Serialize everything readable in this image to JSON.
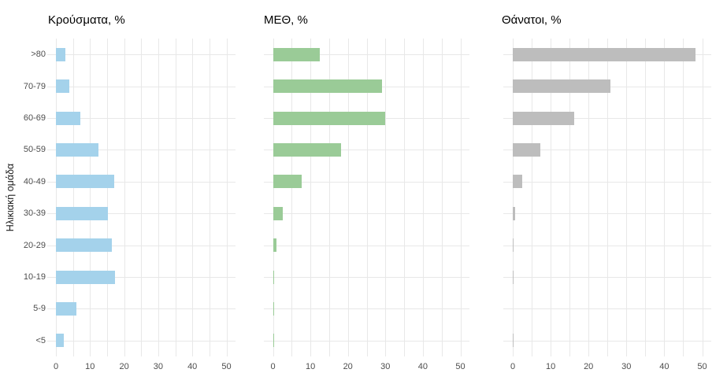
{
  "figure": {
    "y_axis_title": "Ηλικιακή ομάδα",
    "categories": [
      ">80",
      "70-79",
      "60-69",
      "50-59",
      "40-49",
      "30-39",
      "20-29",
      "10-19",
      "5-9",
      "<5"
    ],
    "x_tick_labels": [
      "0",
      "10",
      "20",
      "30",
      "40",
      "50"
    ],
    "colors": {
      "cases_bar": "#a4d2eb",
      "icu_bar": "#9acb97",
      "deaths_bar": "#bdbdbd",
      "gridline": "#e8e8e8",
      "axis_text": "#4d4d4d",
      "title_text": "#000000",
      "background": "#ffffff"
    }
  },
  "chart_data": [
    {
      "type": "bar",
      "orientation": "horizontal",
      "title": "Κρούσματα, %",
      "color": "#a4d2eb",
      "categories": [
        ">80",
        "70-79",
        "60-69",
        "50-59",
        "40-49",
        "30-39",
        "20-29",
        "10-19",
        "5-9",
        "<5"
      ],
      "values": [
        2.7,
        3.9,
        7.1,
        12.5,
        17.1,
        15.3,
        16.4,
        17.3,
        6.0,
        2.3
      ],
      "xlabel": "",
      "ylabel": "Ηλικιακή ομάδα",
      "xlim": [
        0,
        50
      ],
      "x_ticks": [
        0,
        10,
        20,
        30,
        40,
        50
      ],
      "x_minor_ticks": [
        5,
        15,
        25,
        35,
        45
      ],
      "grid": true,
      "legend": false
    },
    {
      "type": "bar",
      "orientation": "horizontal",
      "title": "ΜΕΘ, %",
      "color": "#9acb97",
      "categories": [
        ">80",
        "70-79",
        "60-69",
        "50-59",
        "40-49",
        "30-39",
        "20-29",
        "10-19",
        "5-9",
        "<5"
      ],
      "values": [
        12.5,
        29.2,
        30.0,
        18.2,
        7.7,
        2.6,
        1.0,
        0.3,
        0.2,
        0.2
      ],
      "xlabel": "",
      "ylabel": "",
      "xlim": [
        0,
        50
      ],
      "x_ticks": [
        0,
        10,
        20,
        30,
        40,
        50
      ],
      "x_minor_ticks": [
        5,
        15,
        25,
        35,
        45
      ],
      "grid": true,
      "legend": false
    },
    {
      "type": "bar",
      "orientation": "horizontal",
      "title": "Θάνατοι, %",
      "color": "#bdbdbd",
      "categories": [
        ">80",
        "70-79",
        "60-69",
        "50-59",
        "40-49",
        "30-39",
        "20-29",
        "10-19",
        "5-9",
        "<5"
      ],
      "values": [
        48.3,
        25.8,
        16.2,
        7.3,
        2.4,
        0.6,
        0.2,
        0.2,
        0.0,
        0.1
      ],
      "xlabel": "",
      "ylabel": "",
      "xlim": [
        0,
        50
      ],
      "x_ticks": [
        0,
        10,
        20,
        30,
        40,
        50
      ],
      "x_minor_ticks": [
        5,
        15,
        25,
        35,
        45
      ],
      "grid": true,
      "legend": false
    }
  ]
}
